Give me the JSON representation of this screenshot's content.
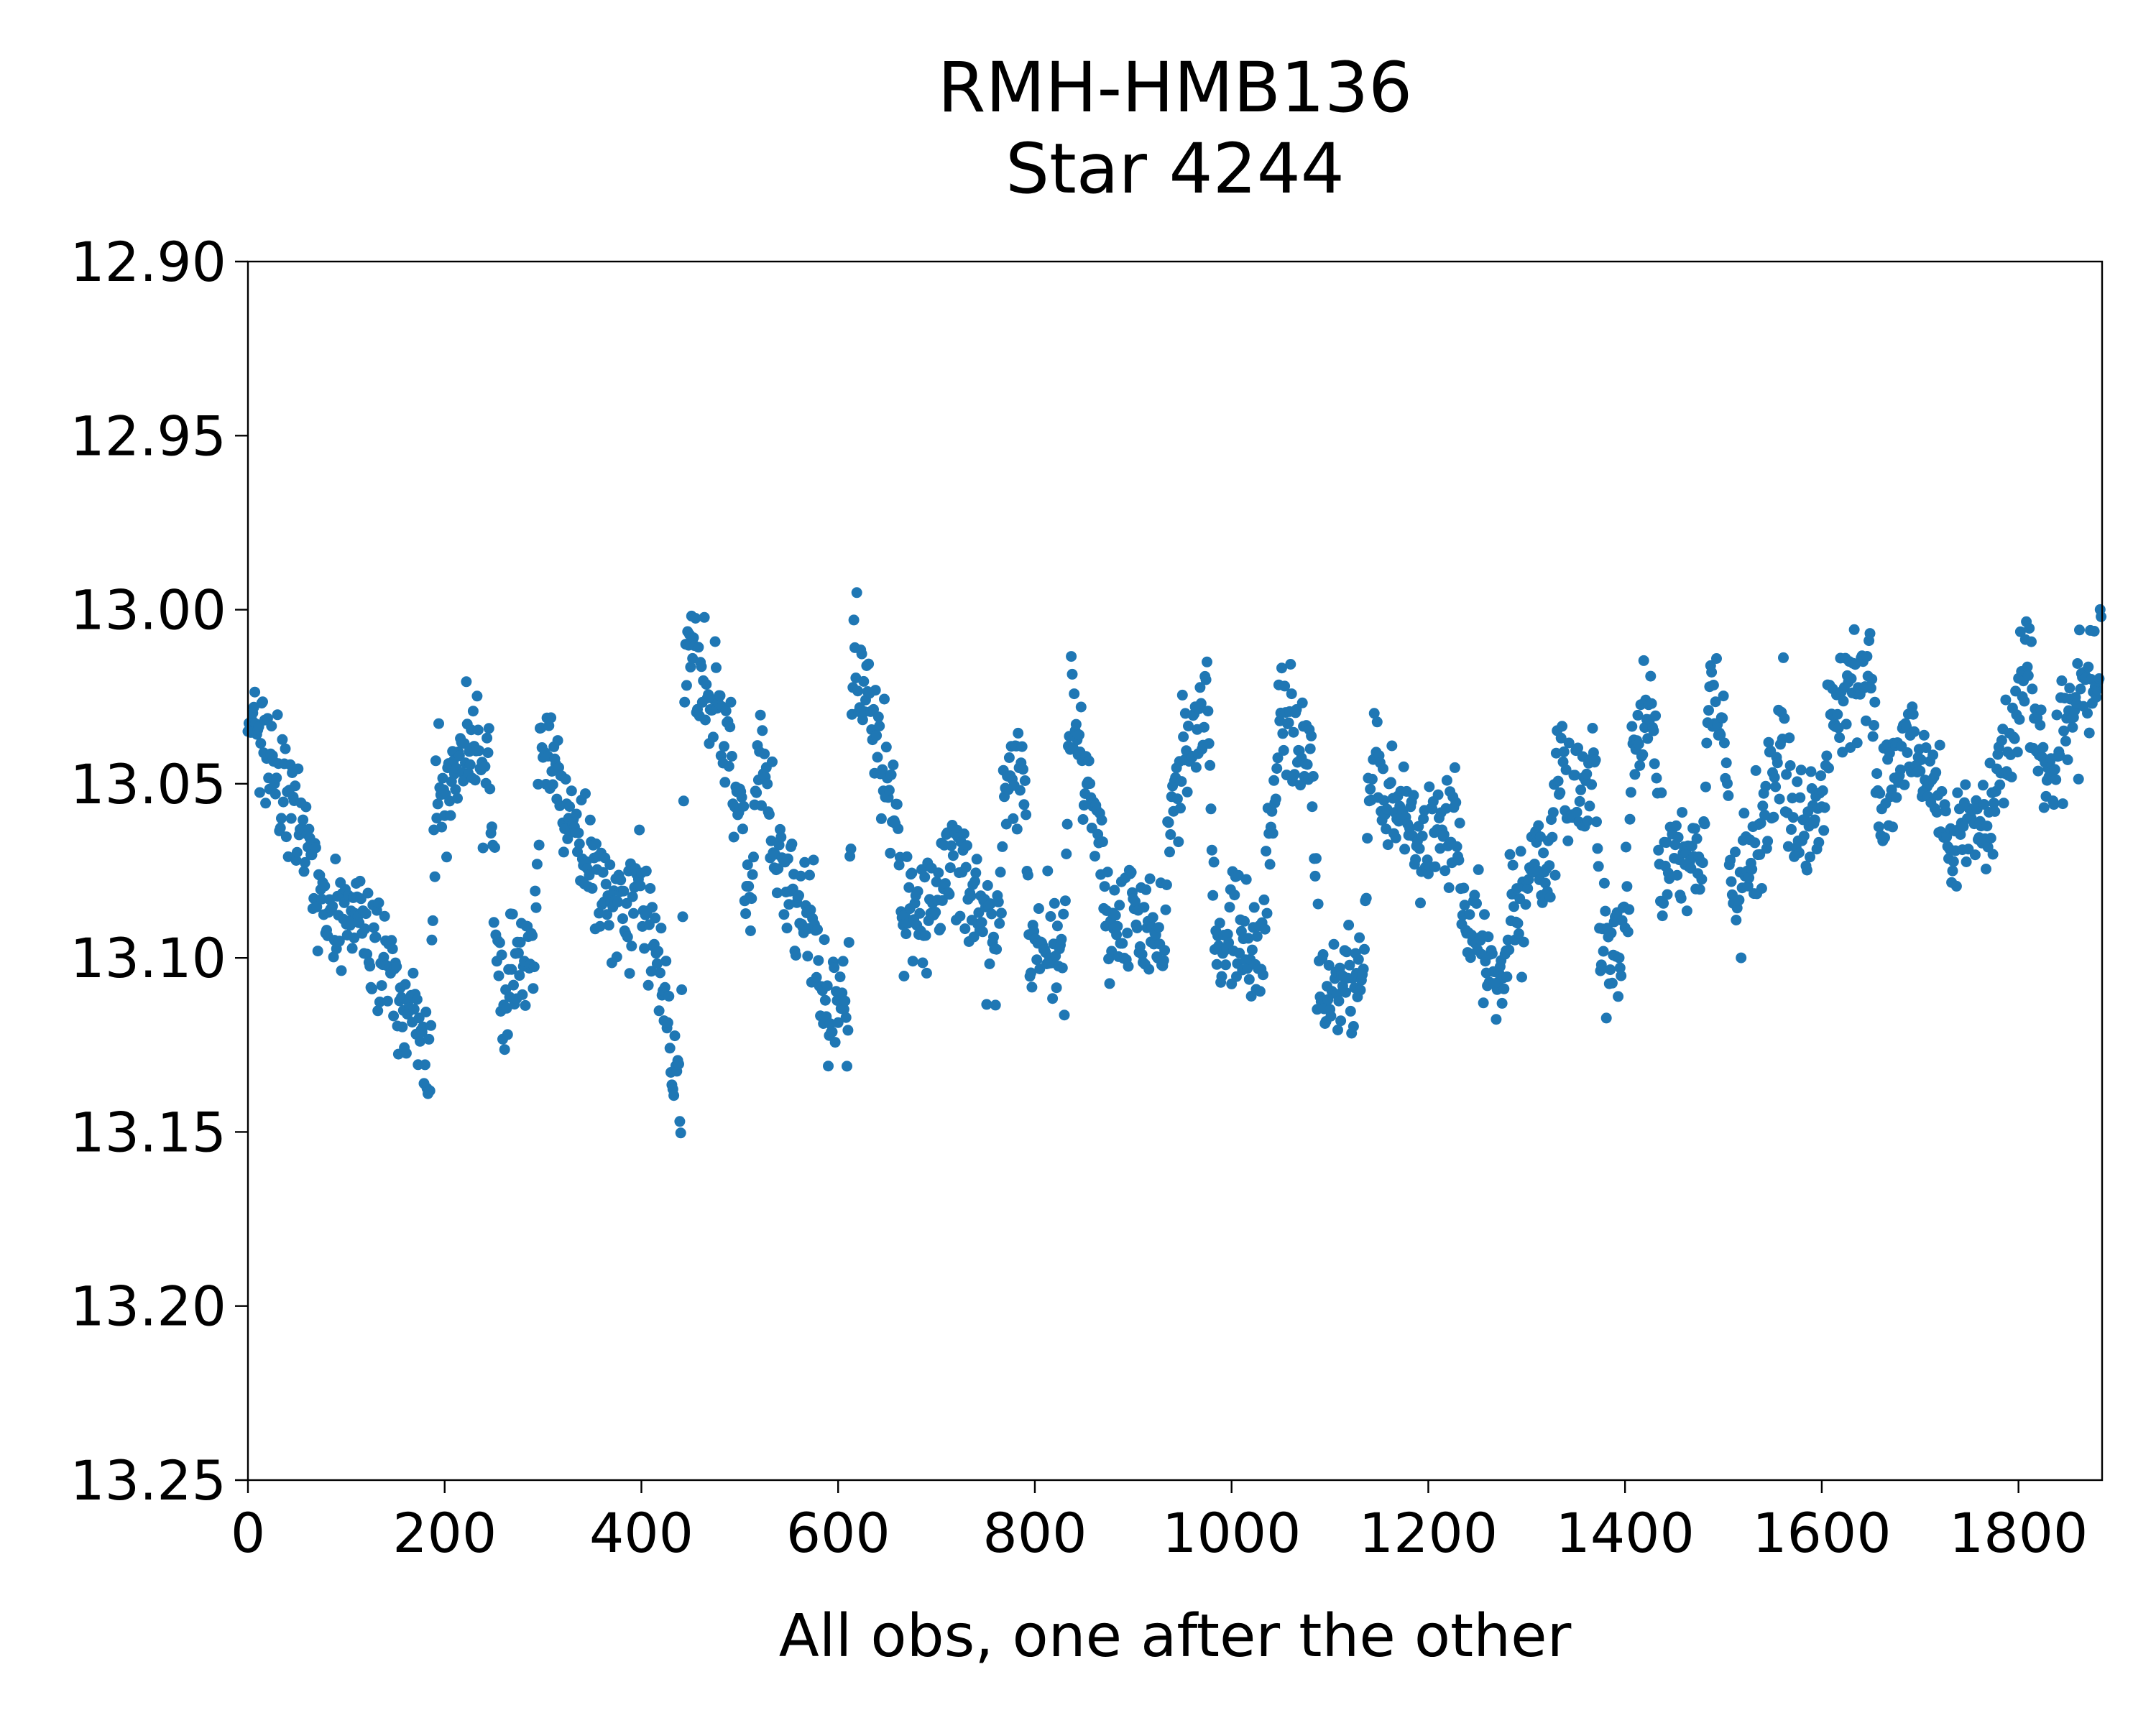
{
  "chart_data": {
    "type": "scatter",
    "title_line1": "RMH-HMB136",
    "title_line2": "Star 4244",
    "xlabel": "All obs, one after the other",
    "ylabel": "",
    "xlim": [
      0,
      1885
    ],
    "ylim": [
      13.25,
      12.9
    ],
    "y_inverted": true,
    "grid": false,
    "x_ticks": [
      0,
      200,
      400,
      600,
      800,
      1000,
      1200,
      1400,
      1600,
      1800
    ],
    "y_ticks": [
      "12.90",
      "12.95",
      "13.00",
      "13.05",
      "13.10",
      "13.15",
      "13.20",
      "13.25"
    ],
    "marker_color": "#1f77b4",
    "n_points": 1885,
    "trend_knots": [
      [
        0,
        13.03
      ],
      [
        20,
        13.04
      ],
      [
        40,
        13.055
      ],
      [
        60,
        13.07
      ],
      [
        75,
        13.09
      ],
      [
        100,
        13.085
      ],
      [
        130,
        13.095
      ],
      [
        160,
        13.115
      ],
      [
        185,
        13.13
      ],
      [
        190,
        13.06
      ],
      [
        215,
        13.04
      ],
      [
        245,
        13.045
      ],
      [
        255,
        13.11
      ],
      [
        290,
        13.1
      ],
      [
        300,
        13.03
      ],
      [
        330,
        13.065
      ],
      [
        365,
        13.085
      ],
      [
        400,
        13.085
      ],
      [
        425,
        13.11
      ],
      [
        432,
        13.135
      ],
      [
        440,
        13.13
      ],
      [
        445,
        13.01
      ],
      [
        480,
        13.03
      ],
      [
        500,
        13.06
      ],
      [
        510,
        13.085
      ],
      [
        520,
        13.04
      ],
      [
        540,
        13.075
      ],
      [
        570,
        13.09
      ],
      [
        590,
        13.11
      ],
      [
        610,
        13.12
      ],
      [
        615,
        13.01
      ],
      [
        640,
        13.04
      ],
      [
        660,
        13.06
      ],
      [
        665,
        13.09
      ],
      [
        700,
        13.085
      ],
      [
        720,
        13.07
      ],
      [
        760,
        13.1
      ],
      [
        770,
        13.05
      ],
      [
        790,
        13.045
      ],
      [
        795,
        13.1
      ],
      [
        830,
        13.1
      ],
      [
        835,
        13.03
      ],
      [
        860,
        13.055
      ],
      [
        875,
        13.09
      ],
      [
        900,
        13.085
      ],
      [
        930,
        13.1
      ],
      [
        940,
        13.05
      ],
      [
        975,
        13.03
      ],
      [
        985,
        13.1
      ],
      [
        1010,
        13.09
      ],
      [
        1030,
        13.1
      ],
      [
        1050,
        13.03
      ],
      [
        1080,
        13.04
      ],
      [
        1090,
        13.11
      ],
      [
        1135,
        13.1
      ],
      [
        1140,
        13.045
      ],
      [
        1170,
        13.06
      ],
      [
        1200,
        13.065
      ],
      [
        1230,
        13.06
      ],
      [
        1235,
        13.09
      ],
      [
        1270,
        13.1
      ],
      [
        1310,
        13.07
      ],
      [
        1320,
        13.075
      ],
      [
        1330,
        13.05
      ],
      [
        1370,
        13.045
      ],
      [
        1375,
        13.095
      ],
      [
        1400,
        13.095
      ],
      [
        1410,
        13.03
      ],
      [
        1430,
        13.03
      ],
      [
        1435,
        13.075
      ],
      [
        1480,
        13.065
      ],
      [
        1485,
        13.03
      ],
      [
        1500,
        13.03
      ],
      [
        1510,
        13.09
      ],
      [
        1530,
        13.07
      ],
      [
        1540,
        13.06
      ],
      [
        1560,
        13.04
      ],
      [
        1570,
        13.06
      ],
      [
        1600,
        13.06
      ],
      [
        1610,
        13.03
      ],
      [
        1650,
        13.015
      ],
      [
        1660,
        13.065
      ],
      [
        1690,
        13.035
      ],
      [
        1720,
        13.055
      ],
      [
        1730,
        13.07
      ],
      [
        1760,
        13.06
      ],
      [
        1770,
        13.06
      ],
      [
        1790,
        13.04
      ],
      [
        1810,
        13.02
      ],
      [
        1830,
        13.05
      ],
      [
        1860,
        13.025
      ],
      [
        1885,
        13.015
      ]
    ]
  }
}
